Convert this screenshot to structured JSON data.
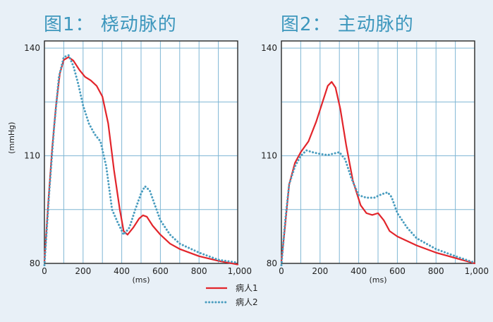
{
  "colors": {
    "background": "#e8f0f7",
    "grid": "#7fb6d4",
    "patient1": "#e2252b",
    "patient2": "#4a9dbf",
    "title": "#3d97bd"
  },
  "chart_data": [
    {
      "type": "line",
      "title": "图1：  桡动脉的",
      "xlabel": "(ms)",
      "ylabel": "(mmHg)",
      "xlim": [
        0,
        1000
      ],
      "ylim": [
        80,
        142
      ],
      "xticks": [
        "0",
        "200",
        "400",
        "600",
        "800",
        "1,000"
      ],
      "yticks": [
        "140",
        "110",
        "80"
      ],
      "grid": true,
      "series": [
        {
          "name": "病人1",
          "style": "solid",
          "points": [
            [
              0,
              80.5
            ],
            [
              20,
              97
            ],
            [
              40,
              112
            ],
            [
              60,
              124
            ],
            [
              80,
              133
            ],
            [
              100,
              136.7
            ],
            [
              125,
              137.5
            ],
            [
              150,
              136.5
            ],
            [
              180,
              134
            ],
            [
              210,
              132
            ],
            [
              240,
              131
            ],
            [
              270,
              129.5
            ],
            [
              300,
              126.5
            ],
            [
              330,
              119
            ],
            [
              360,
              106
            ],
            [
              390,
              95
            ],
            [
              410,
              89
            ],
            [
              430,
              88
            ],
            [
              460,
              90
            ],
            [
              490,
              92.5
            ],
            [
              510,
              93.4
            ],
            [
              530,
              93
            ],
            [
              560,
              90.5
            ],
            [
              600,
              88
            ],
            [
              650,
              85.5
            ],
            [
              700,
              84
            ],
            [
              800,
              82
            ],
            [
              900,
              80.7
            ],
            [
              1000,
              79.7
            ]
          ]
        },
        {
          "name": "病人2",
          "style": "dotted",
          "points": [
            [
              0,
              79.5
            ],
            [
              25,
              100
            ],
            [
              50,
              118
            ],
            [
              75,
              132
            ],
            [
              100,
              137.5
            ],
            [
              125,
              138
            ],
            [
              150,
              135
            ],
            [
              175,
              130
            ],
            [
              200,
              124
            ],
            [
              230,
              119
            ],
            [
              260,
              116
            ],
            [
              290,
              114
            ],
            [
              320,
              107
            ],
            [
              350,
              95
            ],
            [
              380,
              91.3
            ],
            [
              410,
              88
            ],
            [
              440,
              90
            ],
            [
              470,
              95
            ],
            [
              500,
              99.5
            ],
            [
              520,
              101.5
            ],
            [
              545,
              100.3
            ],
            [
              570,
              96.5
            ],
            [
              600,
              92
            ],
            [
              650,
              88
            ],
            [
              700,
              85.5
            ],
            [
              800,
              83
            ],
            [
              900,
              81
            ],
            [
              1000,
              80.2
            ]
          ]
        }
      ]
    },
    {
      "type": "line",
      "title": "图2：  主动脉的",
      "xlabel": "(ms)",
      "ylabel": "",
      "xlim": [
        0,
        1000
      ],
      "ylim": [
        80,
        142
      ],
      "xticks": [
        "0",
        "200",
        "400",
        "600",
        "800",
        "1,000"
      ],
      "yticks": [
        "140",
        "110",
        "80"
      ],
      "grid": true,
      "series": [
        {
          "name": "病人1",
          "style": "solid",
          "points": [
            [
              0,
              80.5
            ],
            [
              20,
              91
            ],
            [
              40,
              102
            ],
            [
              70,
              108
            ],
            [
              100,
              111
            ],
            [
              140,
              114
            ],
            [
              180,
              119.5
            ],
            [
              210,
              124.5
            ],
            [
              240,
              129.5
            ],
            [
              260,
              130.6
            ],
            [
              280,
              129
            ],
            [
              305,
              123
            ],
            [
              335,
              113
            ],
            [
              370,
              103
            ],
            [
              410,
              96.2
            ],
            [
              440,
              94
            ],
            [
              470,
              93.5
            ],
            [
              500,
              94
            ],
            [
              530,
              92
            ],
            [
              560,
              89
            ],
            [
              600,
              87.5
            ],
            [
              700,
              85
            ],
            [
              800,
              83
            ],
            [
              900,
              81.5
            ],
            [
              1000,
              80
            ]
          ]
        },
        {
          "name": "病人2",
          "style": "dotted",
          "points": [
            [
              0,
              79.5
            ],
            [
              20,
              92
            ],
            [
              40,
              102
            ],
            [
              70,
              107
            ],
            [
              100,
              110
            ],
            [
              130,
              111.5
            ],
            [
              160,
              111
            ],
            [
              200,
              110.5
            ],
            [
              240,
              110.2
            ],
            [
              270,
              110.6
            ],
            [
              300,
              111
            ],
            [
              330,
              109
            ],
            [
              360,
              104
            ],
            [
              400,
              99
            ],
            [
              440,
              98.3
            ],
            [
              480,
              98.3
            ],
            [
              520,
              99.3
            ],
            [
              550,
              99.8
            ],
            [
              570,
              98.5
            ],
            [
              600,
              94
            ],
            [
              650,
              90
            ],
            [
              700,
              87
            ],
            [
              800,
              84
            ],
            [
              900,
              82
            ],
            [
              1000,
              80.2
            ]
          ]
        }
      ]
    }
  ],
  "legend": [
    {
      "label": "病人1",
      "style": "solid"
    },
    {
      "label": "病人2",
      "style": "dotted"
    }
  ]
}
